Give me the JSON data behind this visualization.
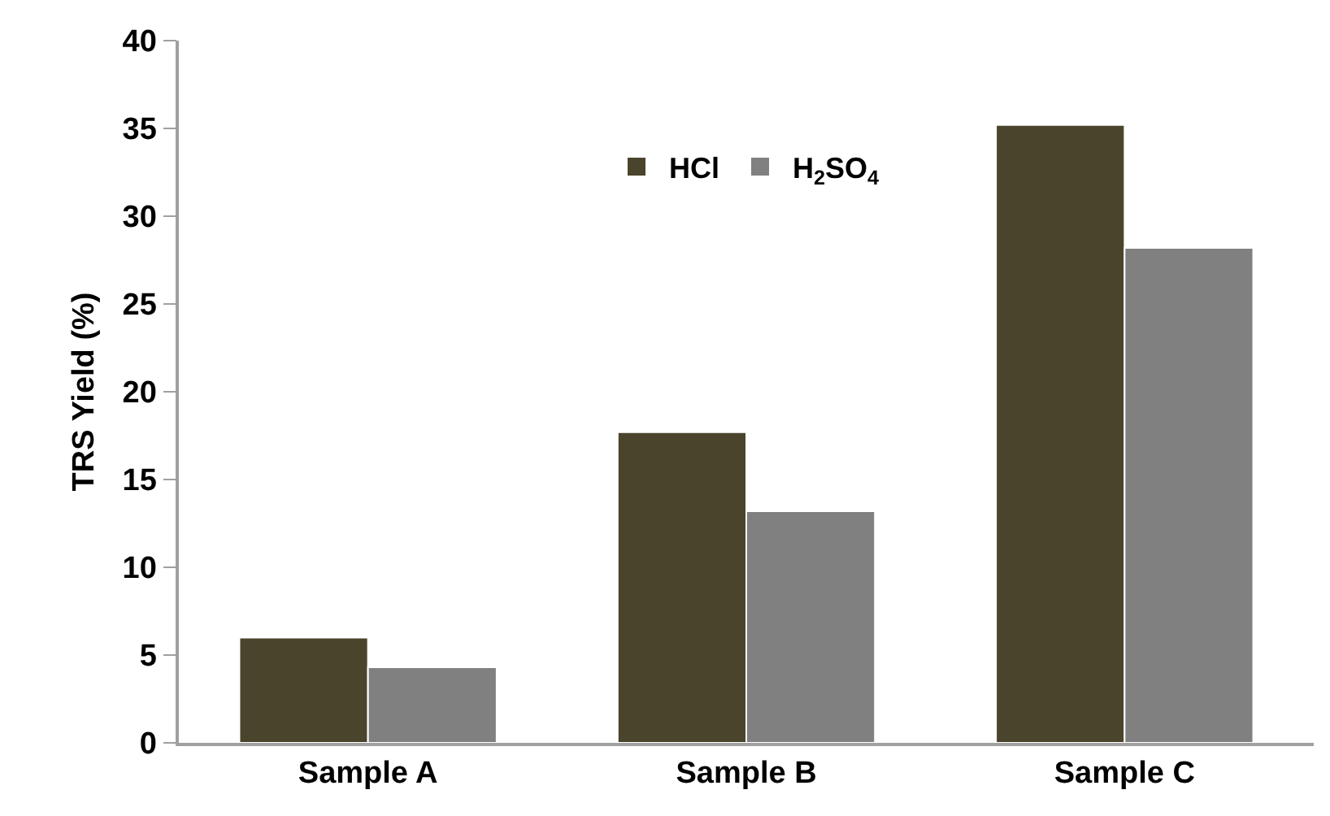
{
  "chart_data": {
    "type": "bar",
    "ylabel": "TRS Yield (%)",
    "categories": [
      "Sample A",
      "Sample B",
      "Sample C"
    ],
    "series": [
      {
        "name": "HCl",
        "color": "#4a442c",
        "values": [
          6.0,
          17.7,
          35.2
        ]
      },
      {
        "name": "H$_{2}$SO$_{4}$",
        "color": "#808080",
        "values": [
          4.3,
          13.2,
          28.2
        ]
      }
    ],
    "ylim": [
      0,
      40
    ],
    "yticks": [
      0,
      5,
      10,
      15,
      20,
      25,
      30,
      35,
      40
    ],
    "legend": "top"
  }
}
